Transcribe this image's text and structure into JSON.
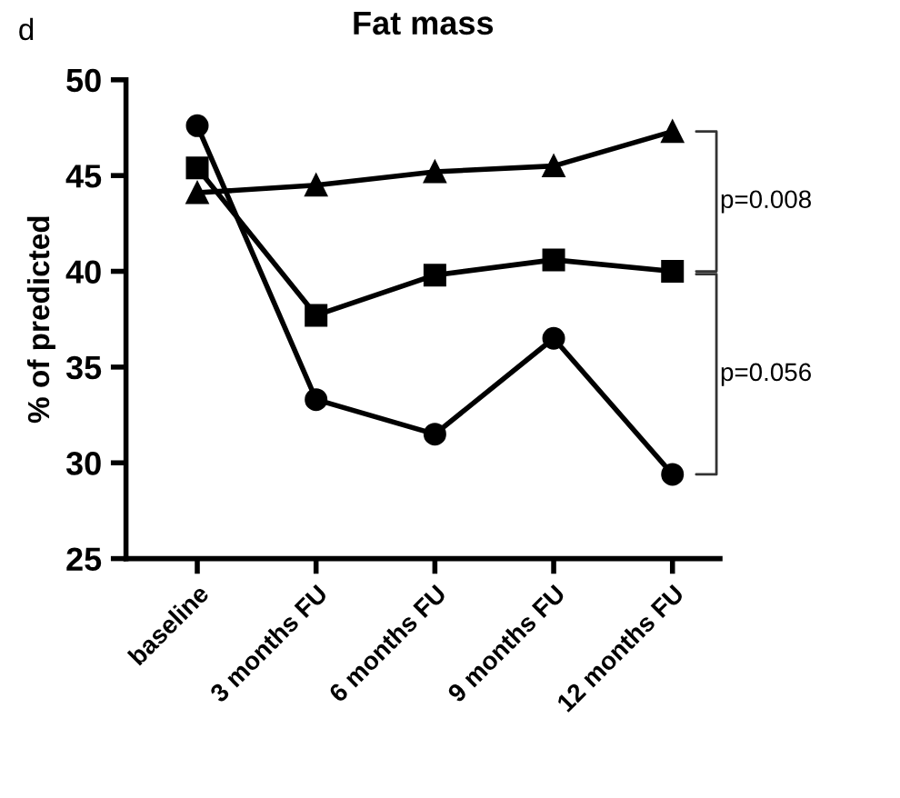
{
  "chart_data": {
    "type": "line",
    "title": "Fat mass",
    "ylabel": "% of predicted",
    "categories": [
      "baseline",
      "3 months FU",
      "6 months FU",
      "9 months FU",
      "12 months FU"
    ],
    "series": [
      {
        "color": "#000000",
        "marker": "triangle",
        "values": [
          44.1,
          44.5,
          45.2,
          45.5,
          47.3
        ]
      },
      {
        "color": "#000000",
        "marker": "square",
        "values": [
          45.4,
          37.7,
          39.8,
          40.6,
          40.0
        ]
      },
      {
        "color": "#000000",
        "marker": "circle",
        "values": [
          47.6,
          33.3,
          31.5,
          36.5,
          29.4
        ]
      }
    ],
    "ylim": [
      25,
      50
    ],
    "yticks": [
      25,
      30,
      35,
      40,
      45,
      50
    ],
    "grid": false,
    "legend": false,
    "line_style": "solid",
    "annotations": [
      "d",
      "p=0.008",
      "p=0.056"
    ]
  }
}
